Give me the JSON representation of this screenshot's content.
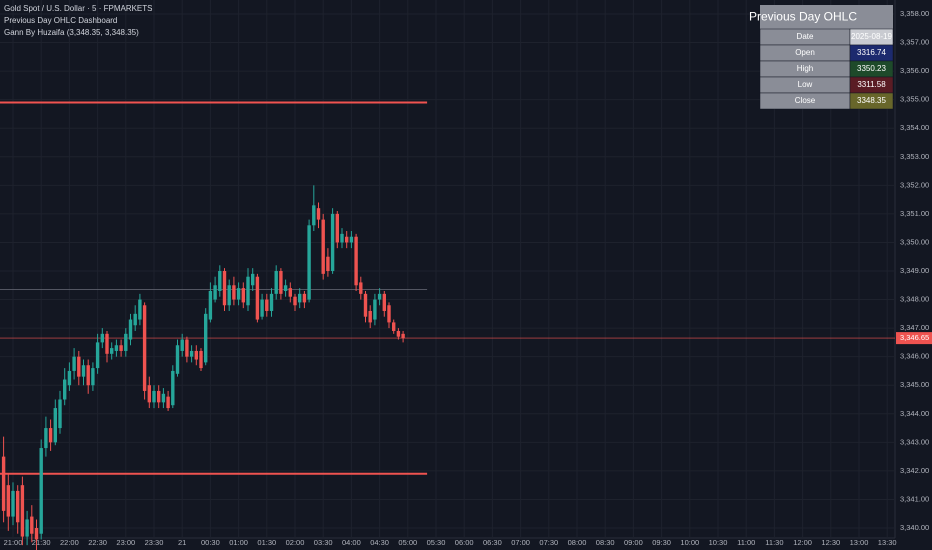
{
  "chart_data": {
    "type": "candlestick",
    "legend": [
      "Gold Spot / U.S. Dollar · 5 · FPMARKETS",
      "Previous Day OHLC Dashboard",
      "Gann By Huzaifa (3,348.35, 3,348.35)"
    ],
    "up_color": "#26a69a",
    "down_color": "#ef5350",
    "open": [
      3342.5,
      3341.5,
      3340.4,
      3341.3,
      3341.5,
      3339.7,
      3340.4,
      3340.0,
      3339.8,
      3342.8,
      3343.5,
      3343.0,
      3343.5,
      3344.5,
      3345.0,
      3345.5,
      3346.0,
      3345.3,
      3345.7,
      3345.0,
      3345.6,
      3346.5,
      3346.8,
      3346.1,
      3346.2,
      3346.4,
      3346.2,
      3346.6,
      3347.1,
      3347.3,
      3347.8,
      3345.0,
      3344.4,
      3344.8,
      3344.4,
      3344.6,
      3344.3,
      3345.4,
      3346.2,
      3346.6,
      3346.0,
      3346.2,
      3346.2,
      3345.8,
      3347.3,
      3348.0,
      3348.3,
      3349.0,
      3347.8,
      3348.5,
      3348.0,
      3348.4,
      3347.8,
      3348.5,
      3348.8,
      3347.4,
      3348.0,
      3347.6,
      3348.2,
      3349.0,
      3348.3,
      3348.4,
      3348.1,
      3347.9,
      3348.2,
      3348.0,
      3350.6,
      3351.2,
      3350.8,
      3349.5,
      3349.0,
      3351.0,
      3350.0,
      3350.2,
      3350.0,
      3350.2,
      3348.6,
      3348.2,
      3347.6,
      3347.3,
      3348.0,
      3348.2,
      3347.8,
      3347.2,
      3346.9,
      3346.8
    ],
    "high": [
      3343.2,
      3341.9,
      3341.6,
      3341.5,
      3341.8,
      3340.6,
      3340.8,
      3340.3,
      3343.1,
      3343.9,
      3343.8,
      3344.5,
      3344.8,
      3345.6,
      3345.8,
      3346.3,
      3346.2,
      3345.9,
      3345.9,
      3345.8,
      3346.8,
      3347.0,
      3346.9,
      3346.5,
      3346.6,
      3346.6,
      3347.0,
      3347.5,
      3347.8,
      3348.2,
      3347.9,
      3345.3,
      3345.0,
      3345.0,
      3344.9,
      3344.8,
      3345.7,
      3346.6,
      3346.8,
      3346.7,
      3346.4,
      3346.4,
      3346.3,
      3347.7,
      3348.6,
      3348.8,
      3349.2,
      3349.1,
      3348.7,
      3348.8,
      3348.6,
      3348.6,
      3349.1,
      3349.1,
      3348.9,
      3348.2,
      3348.2,
      3348.4,
      3349.2,
      3349.1,
      3348.7,
      3348.6,
      3348.2,
      3348.4,
      3348.3,
      3350.8,
      3352.0,
      3351.4,
      3351.0,
      3349.8,
      3351.2,
      3351.1,
      3350.5,
      3350.4,
      3350.4,
      3350.3,
      3348.8,
      3348.3,
      3347.8,
      3348.2,
      3348.4,
      3348.3,
      3347.9,
      3347.3,
      3347.0,
      3346.9
    ],
    "low": [
      3340.2,
      3339.9,
      3340.1,
      3339.8,
      3339.4,
      3339.4,
      3339.5,
      3339.1,
      3339.6,
      3342.5,
      3342.7,
      3342.9,
      3343.3,
      3344.3,
      3344.8,
      3345.2,
      3345.0,
      3345.0,
      3344.7,
      3344.8,
      3345.4,
      3346.3,
      3345.8,
      3345.9,
      3346.0,
      3346.0,
      3346.0,
      3346.4,
      3346.9,
      3347.1,
      3344.5,
      3344.2,
      3344.2,
      3344.2,
      3344.2,
      3344.1,
      3344.2,
      3345.3,
      3346.0,
      3345.8,
      3345.8,
      3345.7,
      3345.5,
      3345.7,
      3347.2,
      3347.9,
      3348.1,
      3347.6,
      3347.6,
      3347.8,
      3347.8,
      3347.7,
      3347.6,
      3348.3,
      3347.2,
      3347.3,
      3347.4,
      3347.4,
      3348.0,
      3348.0,
      3348.1,
      3347.9,
      3347.6,
      3347.7,
      3347.7,
      3347.9,
      3350.4,
      3350.5,
      3348.7,
      3348.8,
      3348.9,
      3349.8,
      3349.8,
      3349.8,
      3349.8,
      3348.3,
      3348.0,
      3347.2,
      3347.0,
      3347.1,
      3347.8,
      3347.4,
      3347.0,
      3346.8,
      3346.6,
      3346.5
    ],
    "close": [
      3340.6,
      3340.4,
      3341.3,
      3340.2,
      3339.7,
      3340.3,
      3339.8,
      3339.6,
      3342.8,
      3343.5,
      3343.0,
      3344.2,
      3344.5,
      3345.2,
      3345.5,
      3346.0,
      3345.3,
      3345.7,
      3345.0,
      3345.6,
      3346.5,
      3346.8,
      3346.1,
      3346.3,
      3346.4,
      3346.2,
      3346.8,
      3347.3,
      3347.5,
      3348.0,
      3344.8,
      3344.4,
      3344.8,
      3344.4,
      3344.7,
      3344.2,
      3345.5,
      3346.4,
      3346.6,
      3346.0,
      3346.2,
      3345.9,
      3345.6,
      3347.5,
      3348.3,
      3348.5,
      3349.0,
      3347.8,
      3348.5,
      3348.0,
      3348.4,
      3347.9,
      3348.8,
      3348.9,
      3347.3,
      3348.0,
      3347.6,
      3348.2,
      3349.0,
      3348.2,
      3348.5,
      3348.1,
      3347.8,
      3348.2,
      3347.9,
      3350.6,
      3351.3,
      3350.8,
      3348.9,
      3349.0,
      3351.0,
      3350.0,
      3350.3,
      3350.0,
      3350.2,
      3348.5,
      3348.2,
      3347.4,
      3347.2,
      3348.0,
      3348.2,
      3347.6,
      3347.2,
      3346.9,
      3346.7,
      3346.65
    ],
    "levels": [
      3354.9,
      3341.9
    ],
    "level_color": "#f05350",
    "gann_level": 3348.35,
    "last_price": {
      "value": 3346.65,
      "label": "3,346.65"
    },
    "ylim": [
      3339.65,
      3358.49
    ],
    "yticks": [
      {
        "value": 3340,
        "label": "3,340.00"
      },
      {
        "value": 3341,
        "label": "3,341.00"
      },
      {
        "value": 3342,
        "label": "3,342.00"
      },
      {
        "value": 3343,
        "label": "3,343.00"
      },
      {
        "value": 3344,
        "label": "3,344.00"
      },
      {
        "value": 3345,
        "label": "3,345.00"
      },
      {
        "value": 3346,
        "label": "3,346.00"
      },
      {
        "value": 3347,
        "label": "3,347.00"
      },
      {
        "value": 3348,
        "label": "3,348.00"
      },
      {
        "value": 3349,
        "label": "3,349.00"
      },
      {
        "value": 3350,
        "label": "3,350.00"
      },
      {
        "value": 3351,
        "label": "3,351.00"
      },
      {
        "value": 3352,
        "label": "3,352.00"
      },
      {
        "value": 3353,
        "label": "3,353.00"
      },
      {
        "value": 3354,
        "label": "3,354.00"
      },
      {
        "value": 3355,
        "label": "3,355.00"
      },
      {
        "value": 3356,
        "label": "3,356.00"
      },
      {
        "value": 3357,
        "label": "3,357.00"
      },
      {
        "value": 3358,
        "label": "3,358.00"
      }
    ],
    "xticks": [
      "21:00",
      "21:30",
      "22:00",
      "22:30",
      "23:00",
      "23:30",
      "21",
      "00:30",
      "01:00",
      "01:30",
      "02:00",
      "03:30",
      "04:00",
      "04:30",
      "05:00",
      "05:30",
      "06:00",
      "06:30",
      "07:00",
      "07:30",
      "08:00",
      "08:30",
      "09:00",
      "09:30",
      "10:00",
      "10:30",
      "11:00",
      "11:30",
      "12:00",
      "12:30",
      "13:00",
      "13:30"
    ],
    "grid": true,
    "table": {
      "title": "Previous Day OHLC",
      "rows": [
        {
          "label": "Date",
          "value": "2025-08-19",
          "color": "#c9cbd1"
        },
        {
          "label": "Open",
          "value": 3316.74,
          "color": "#1c2a6e"
        },
        {
          "label": "High",
          "value": 3350.23,
          "color": "#1e4a2a"
        },
        {
          "label": "Low",
          "value": 3311.58,
          "color": "#5a1c24"
        },
        {
          "label": "Close",
          "value": 3348.35,
          "color": "#68662a"
        }
      ]
    }
  }
}
